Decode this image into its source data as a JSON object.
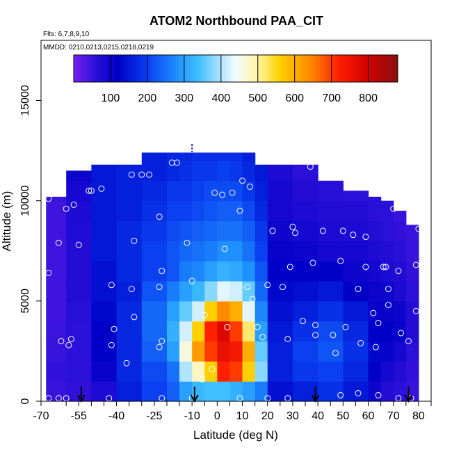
{
  "chart_data": {
    "type": "heatmap",
    "title": "ATOM2 Northbound PAA_CIT",
    "flights_label": "Flts: 6,7,8,9,10",
    "dates_label": "MMDD: 0210,0213,0215,0218,0219",
    "xlabel": "Latitude (deg N)",
    "ylabel": "Altitude (m)",
    "xlim": [
      -70,
      85
    ],
    "ylim": [
      0,
      18000
    ],
    "x_ticks": [
      -70,
      -55,
      -40,
      -25,
      -10,
      0,
      10,
      20,
      30,
      40,
      50,
      60,
      70,
      80
    ],
    "x_minor_ticks": [
      -60,
      -50,
      -45,
      -35,
      -30,
      -20,
      -15,
      -5,
      5,
      15,
      25,
      35,
      45,
      55,
      65,
      75,
      85
    ],
    "y_ticks": [
      0,
      5000,
      10000,
      15000
    ],
    "colorbar": {
      "range": [
        0,
        880
      ],
      "ticks": [
        100,
        200,
        300,
        400,
        500,
        600,
        700,
        800
      ],
      "stops": [
        {
          "v": 0,
          "c": "#7a1ff0"
        },
        {
          "v": 60,
          "c": "#2a10d8"
        },
        {
          "v": 120,
          "c": "#0000c8"
        },
        {
          "v": 200,
          "c": "#0a40f0"
        },
        {
          "v": 280,
          "c": "#1e90ff"
        },
        {
          "v": 340,
          "c": "#40c0ff"
        },
        {
          "v": 400,
          "c": "#b0e4ff"
        },
        {
          "v": 440,
          "c": "#f4faff"
        },
        {
          "v": 500,
          "c": "#fff4a0"
        },
        {
          "v": 560,
          "c": "#ffd000"
        },
        {
          "v": 640,
          "c": "#ff8c00"
        },
        {
          "v": 720,
          "c": "#ff2000"
        },
        {
          "v": 800,
          "c": "#d00000"
        },
        {
          "v": 880,
          "c": "#8b1010"
        }
      ]
    },
    "field": {
      "columns": [
        {
          "x": [
            -68,
            -60
          ],
          "top": 10200,
          "v": [
            50,
            55,
            50,
            48,
            45,
            45,
            45,
            45,
            45,
            45,
            50,
            50,
            60
          ]
        },
        {
          "x": [
            -60,
            -50
          ],
          "top": 11500,
          "v": [
            55,
            60,
            60,
            60,
            65,
            70,
            70,
            70,
            75,
            80,
            90,
            100,
            100
          ]
        },
        {
          "x": [
            -50,
            -40
          ],
          "top": 11800,
          "v": [
            80,
            110,
            120,
            120,
            130,
            140,
            140,
            150,
            150,
            150,
            150,
            150,
            140
          ]
        },
        {
          "x": [
            -40,
            -30
          ],
          "top": 11800,
          "v": [
            160,
            170,
            170,
            170,
            170,
            160,
            170,
            170,
            170,
            160,
            160,
            160,
            150
          ]
        },
        {
          "x": [
            -30,
            -20
          ],
          "top": 12400,
          "v": [
            200,
            210,
            230,
            240,
            240,
            220,
            200,
            200,
            190,
            180,
            170,
            160,
            160
          ]
        },
        {
          "x": [
            -20,
            -15
          ],
          "top": 12400,
          "v": [
            230,
            250,
            300,
            320,
            300,
            260,
            220,
            220,
            210,
            200,
            190,
            170,
            170
          ]
        },
        {
          "x": [
            -15,
            -10
          ],
          "top": 12400,
          "v": [
            300,
            400,
            460,
            420,
            360,
            300,
            260,
            240,
            220,
            200,
            190,
            180,
            170
          ]
        },
        {
          "x": [
            -10,
            -5
          ],
          "top": 12400,
          "v": [
            330,
            480,
            620,
            560,
            420,
            330,
            270,
            250,
            230,
            210,
            200,
            190,
            180
          ]
        },
        {
          "x": [
            -5,
            0
          ],
          "top": 12400,
          "v": [
            340,
            560,
            700,
            720,
            560,
            380,
            300,
            260,
            240,
            220,
            210,
            190,
            180
          ]
        },
        {
          "x": [
            0,
            5
          ],
          "top": 12400,
          "v": [
            340,
            720,
            760,
            780,
            640,
            430,
            320,
            280,
            250,
            230,
            210,
            200,
            180
          ]
        },
        {
          "x": [
            5,
            10
          ],
          "top": 12400,
          "v": [
            320,
            700,
            740,
            700,
            600,
            420,
            310,
            280,
            250,
            230,
            210,
            190,
            180
          ]
        },
        {
          "x": [
            10,
            15
          ],
          "top": 12400,
          "v": [
            300,
            560,
            600,
            520,
            430,
            360,
            280,
            250,
            230,
            210,
            190,
            170,
            160
          ]
        },
        {
          "x": [
            15,
            20
          ],
          "top": 11800,
          "v": [
            260,
            380,
            360,
            300,
            270,
            240,
            220,
            200,
            190,
            170,
            160,
            150,
            140
          ]
        },
        {
          "x": [
            20,
            30
          ],
          "top": 11800,
          "v": [
            140,
            160,
            160,
            150,
            140,
            130,
            120,
            110,
            100,
            90,
            90,
            80,
            70
          ]
        },
        {
          "x": [
            30,
            40
          ],
          "top": 11800,
          "v": [
            160,
            190,
            200,
            180,
            160,
            140,
            120,
            100,
            90,
            80,
            70,
            60,
            60
          ]
        },
        {
          "x": [
            40,
            50
          ],
          "top": 11000,
          "v": [
            180,
            200,
            220,
            210,
            180,
            150,
            120,
            90,
            80,
            70,
            65,
            60,
            60
          ]
        },
        {
          "x": [
            50,
            60
          ],
          "top": 10500,
          "v": [
            150,
            170,
            180,
            170,
            150,
            120,
            100,
            90,
            80,
            70,
            60,
            60,
            55
          ]
        },
        {
          "x": [
            60,
            65
          ],
          "top": 10200,
          "v": [
            100,
            120,
            130,
            120,
            110,
            100,
            90,
            80,
            70,
            60,
            60,
            55,
            55
          ]
        },
        {
          "x": [
            65,
            70
          ],
          "top": 10000,
          "v": [
            70,
            90,
            110,
            120,
            110,
            100,
            80,
            70,
            60,
            60,
            55,
            50,
            50
          ]
        },
        {
          "x": [
            70,
            75
          ],
          "top": 9500,
          "v": [
            60,
            70,
            90,
            110,
            100,
            80,
            70,
            60,
            55,
            50,
            50,
            50,
            50
          ]
        },
        {
          "x": [
            75,
            80
          ],
          "top": 8800,
          "v": [
            50,
            55,
            60,
            70,
            70,
            60,
            55,
            50,
            50,
            50,
            50,
            45,
            45
          ]
        }
      ],
      "y_levels": [
        0,
        1000,
        2000,
        3000,
        4000,
        5000,
        6000,
        7000,
        8000,
        9000,
        10000,
        11000,
        12000
      ]
    },
    "sample_points": [
      [
        -67,
        10100
      ],
      [
        -67,
        6400
      ],
      [
        -63,
        7900
      ],
      [
        -60,
        9600
      ],
      [
        -57,
        9800
      ],
      [
        -55,
        7800
      ],
      [
        -58,
        3100
      ],
      [
        -59,
        2800
      ],
      [
        -62,
        3000
      ],
      [
        -51,
        10500
      ],
      [
        -50,
        10500
      ],
      [
        -46,
        10600
      ],
      [
        -42,
        5800
      ],
      [
        -41,
        3600
      ],
      [
        -42,
        2800
      ],
      [
        -34,
        11300
      ],
      [
        -30,
        11300
      ],
      [
        -27,
        11300
      ],
      [
        -33,
        8000
      ],
      [
        -34,
        5600
      ],
      [
        -33,
        4200
      ],
      [
        -36,
        1900
      ],
      [
        -23,
        9200
      ],
      [
        -22,
        6500
      ],
      [
        -23,
        5700
      ],
      [
        -22,
        3000
      ],
      [
        -23,
        2700
      ],
      [
        -18,
        11900
      ],
      [
        -16,
        11900
      ],
      [
        -12,
        7900
      ],
      [
        -10,
        6000
      ],
      [
        -5,
        4300
      ],
      [
        -2,
        1600
      ],
      [
        -6,
        1100
      ],
      [
        -1,
        10400
      ],
      [
        2,
        10300
      ],
      [
        3,
        7600
      ],
      [
        4,
        3700
      ],
      [
        6,
        10400
      ],
      [
        9,
        9500
      ],
      [
        10,
        11000
      ],
      [
        13,
        10700
      ],
      [
        12,
        5700
      ],
      [
        14,
        5100
      ],
      [
        16,
        3700
      ],
      [
        18,
        3200
      ],
      [
        20,
        5800
      ],
      [
        22,
        8500
      ],
      [
        26,
        5700
      ],
      [
        28,
        3100
      ],
      [
        29,
        6700
      ],
      [
        30,
        8700
      ],
      [
        31,
        8400
      ],
      [
        34,
        4000
      ],
      [
        37,
        11700
      ],
      [
        38,
        6900
      ],
      [
        39,
        3800
      ],
      [
        39,
        3300
      ],
      [
        42,
        8500
      ],
      [
        46,
        3300
      ],
      [
        47,
        2400
      ],
      [
        49,
        7000
      ],
      [
        50,
        8500
      ],
      [
        51,
        3700
      ],
      [
        54,
        8300
      ],
      [
        56,
        5600
      ],
      [
        57,
        2900
      ],
      [
        59,
        8200
      ],
      [
        59,
        6700
      ],
      [
        62,
        4400
      ],
      [
        63,
        2700
      ],
      [
        64,
        3900
      ],
      [
        66,
        6700
      ],
      [
        67,
        6700
      ],
      [
        68,
        5600
      ],
      [
        68,
        4800
      ],
      [
        70,
        9600
      ],
      [
        72,
        6500
      ],
      [
        73,
        3400
      ],
      [
        77,
        9500
      ],
      [
        79,
        6800
      ],
      [
        80,
        8600
      ],
      [
        79,
        4500
      ],
      [
        82,
        4100
      ],
      [
        76,
        3000
      ],
      [
        -67,
        150
      ],
      [
        -63,
        150
      ],
      [
        -60,
        150
      ],
      [
        -43,
        150
      ],
      [
        -22,
        150
      ],
      [
        -10,
        150
      ],
      [
        9,
        150
      ],
      [
        20,
        150
      ],
      [
        28,
        150
      ],
      [
        49,
        300
      ],
      [
        56,
        400
      ],
      [
        64,
        300
      ],
      [
        72,
        150
      ],
      [
        77,
        150
      ]
    ],
    "flight_markers_lat": [
      -54,
      -9,
      39,
      76
    ],
    "top_marker_lat": -10
  }
}
